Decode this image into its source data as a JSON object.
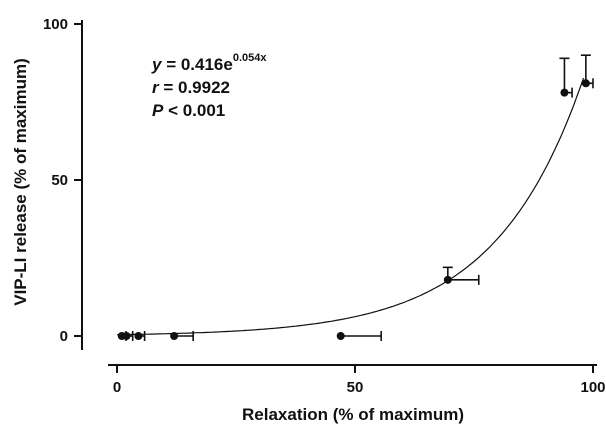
{
  "chart_data": {
    "type": "scatter",
    "xlabel": "Relaxation (% of maximum)",
    "ylabel": "VIP-LI release (% of maximum)",
    "xlim": [
      0,
      100
    ],
    "ylim": [
      0,
      100
    ],
    "x_ticks": [
      "0",
      "50",
      "100"
    ],
    "y_ticks": [
      "0",
      "50",
      "100"
    ],
    "annotation": {
      "eq_y": "y",
      "eq_middle": " = 0.416e",
      "eq_exponent": "0.054x",
      "r_label": "r",
      "r_value": " = 0.9922",
      "p_label": "P",
      "p_value": " < 0.001"
    },
    "fit": {
      "a": 0.416,
      "b": 0.054
    },
    "points": [
      {
        "x": 1,
        "y": 0,
        "xerr": 0.9,
        "yerr": 0
      },
      {
        "x": 2,
        "y": 0,
        "xerr": 1.3,
        "yerr": 0
      },
      {
        "x": 4.5,
        "y": 0,
        "xerr": 1.3,
        "yerr": 0
      },
      {
        "x": 12,
        "y": 0,
        "xerr": 4,
        "yerr": 0
      },
      {
        "x": 47,
        "y": 0,
        "xerr": 8.5,
        "yerr": 0
      },
      {
        "x": 69.5,
        "y": 18,
        "xerr": 6.5,
        "yerr": 4
      },
      {
        "x": 94,
        "y": 78,
        "xerr": 1.6,
        "yerr": 11
      },
      {
        "x": 98.5,
        "y": 81,
        "xerr": 1.5,
        "yerr": 9
      }
    ]
  }
}
